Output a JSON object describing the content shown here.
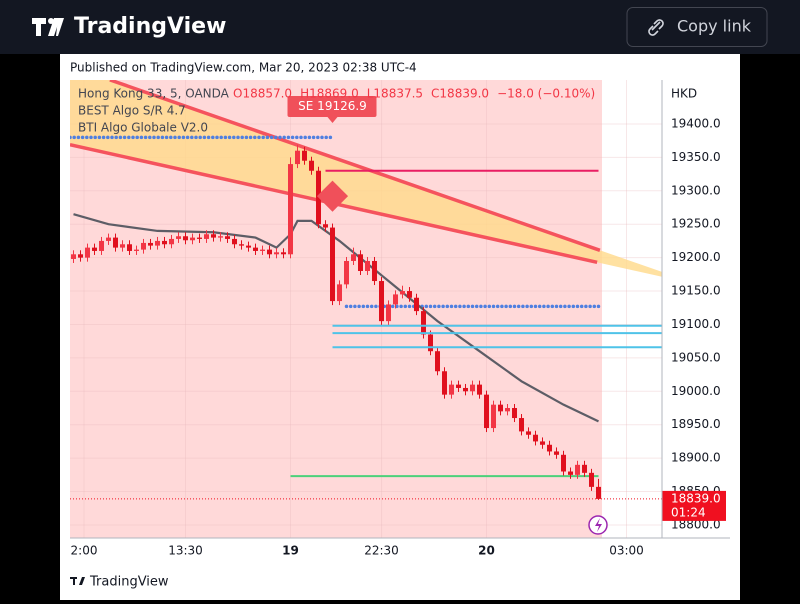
{
  "header": {
    "brand": "TradingView",
    "button": "Copy link"
  },
  "published": "Published on TradingView.com, Mar 20, 2023 02:38 UTC-4",
  "footer": "TradingView",
  "chart_data": {
    "type": "candlestick",
    "symbol": "Hong Kong 33, 5, OANDA",
    "legend_values": [
      "O18857.0",
      "H18869.0",
      "L18837.5",
      "C18839.0",
      "−18.0 (−0.10%)"
    ],
    "indicators": [
      "BEST Algo S/R 4.7",
      "BTI Algo Globale V2.0"
    ],
    "currency": "HKD",
    "open": [
      19198,
      19205,
      19200,
      19215,
      19210,
      19225,
      19230,
      19215,
      19220,
      19210,
      19212,
      19222,
      19218,
      19225,
      19220,
      19228,
      19232,
      19226,
      19230,
      19228,
      19235,
      19230,
      19232,
      19228,
      19220,
      19218,
      19215,
      19210,
      19212,
      19205,
      19208,
      19205,
      19340,
      19360,
      19345,
      19330,
      19250,
      19245,
      19135,
      19160,
      19195,
      19205,
      19180,
      19195,
      19165,
      19105,
      19130,
      19145,
      19150,
      19140,
      19120,
      19085,
      19060,
      19030,
      18995,
      19010,
      19005,
      19000,
      19010,
      18995,
      18945,
      18980,
      18970,
      18975,
      18960,
      18940,
      18935,
      18925,
      18920,
      18910,
      18905,
      18880,
      18875,
      18890,
      18878,
      18857
    ],
    "high": [
      19211,
      19211,
      19221,
      19221,
      19231,
      19236,
      19236,
      19226,
      19226,
      19218,
      19228,
      19228,
      19231,
      19231,
      19234,
      19238,
      19238,
      19236,
      19236,
      19241,
      19241,
      19238,
      19238,
      19234,
      19226,
      19224,
      19221,
      19218,
      19218,
      19214,
      19214,
      19350,
      19369,
      19366,
      19351,
      19336,
      19256,
      19251,
      19166,
      19201,
      19215,
      19211,
      19201,
      19201,
      19171,
      19136,
      19151,
      19158,
      19156,
      19146,
      19126,
      19091,
      19066,
      19036,
      19016,
      19016,
      19011,
      19016,
      19016,
      19001,
      18986,
      18986,
      18981,
      18981,
      18966,
      18946,
      18941,
      18931,
      18926,
      18916,
      18911,
      18886,
      18896,
      18896,
      18884,
      18869
    ],
    "low": [
      19192,
      19194,
      19194,
      19204,
      19204,
      19219,
      19209,
      19209,
      19204,
      19204,
      19206,
      19212,
      19212,
      19214,
      19214,
      19222,
      19220,
      19220,
      19222,
      19222,
      19224,
      19224,
      19222,
      19214,
      19212,
      19209,
      19204,
      19204,
      19199,
      19199,
      19199,
      19199,
      19334,
      19339,
      19324,
      19244,
      19239,
      19129,
      19129,
      19154,
      19189,
      19174,
      19174,
      19159,
      19099,
      19099,
      19124,
      19139,
      19134,
      19114,
      19079,
      19054,
      19024,
      18989,
      18989,
      18999,
      18994,
      18994,
      18989,
      18939,
      18939,
      18964,
      18964,
      18954,
      18934,
      18929,
      18919,
      18914,
      18904,
      18899,
      18874,
      18869,
      18869,
      18872,
      18851,
      18837.5
    ],
    "close": [
      19205,
      19200,
      19215,
      19210,
      19225,
      19230,
      19215,
      19220,
      19210,
      19212,
      19222,
      19218,
      19225,
      19220,
      19228,
      19232,
      19226,
      19230,
      19228,
      19235,
      19230,
      19232,
      19228,
      19220,
      19218,
      19215,
      19210,
      19212,
      19205,
      19208,
      19205,
      19340,
      19360,
      19345,
      19330,
      19250,
      19245,
      19135,
      19160,
      19195,
      19205,
      19180,
      19195,
      19165,
      19105,
      19130,
      19145,
      19150,
      19140,
      19120,
      19085,
      19060,
      19030,
      18995,
      19010,
      19005,
      19000,
      19010,
      18995,
      18945,
      18980,
      18970,
      18975,
      18960,
      18940,
      18935,
      18925,
      18920,
      18910,
      18905,
      18880,
      18875,
      18890,
      18878,
      18857,
      18839
    ],
    "up_color": "#f23645",
    "down_color": "#e0101e",
    "xlim": [
      -0.5,
      84.07
    ],
    "xticks": [
      {
        "value": 1.5,
        "label": "2:00"
      },
      {
        "value": 16,
        "label": "13:30"
      },
      {
        "value": 31,
        "label": "19"
      },
      {
        "value": 44,
        "label": "22:30"
      },
      {
        "value": 59,
        "label": "20"
      },
      {
        "value": 79,
        "label": "03:00"
      }
    ],
    "ylim": [
      18780.5,
      19465.8
    ],
    "yticks": [
      {
        "value": 18800,
        "label": "18800.0"
      },
      {
        "value": 18850,
        "label": "18850.0"
      },
      {
        "value": 18900,
        "label": "18900.0"
      },
      {
        "value": 18950,
        "label": "18950.0"
      },
      {
        "value": 19000,
        "label": "19000.0"
      },
      {
        "value": 19050,
        "label": "19050.0"
      },
      {
        "value": 19100,
        "label": "19100.0"
      },
      {
        "value": 19150,
        "label": "19150.0"
      },
      {
        "value": 19200,
        "label": "19200.0"
      },
      {
        "value": 19250,
        "label": "19250.0"
      },
      {
        "value": 19300,
        "label": "19300.0"
      },
      {
        "value": 19350,
        "label": "19350.0"
      },
      {
        "value": 19400,
        "label": "19400.0"
      }
    ],
    "grid": true,
    "ma": {
      "x": [
        0,
        5,
        12,
        20,
        26,
        29,
        31,
        32,
        34,
        38,
        45,
        52,
        58,
        64,
        70,
        75
      ],
      "values": [
        19265,
        19250,
        19240,
        19238,
        19230,
        19215,
        19235,
        19255,
        19255,
        19225,
        19165,
        19105,
        19060,
        19015,
        18980,
        18955
      ],
      "color": "#5d5d66"
    },
    "trendlines": [
      {
        "x": [
          5.2,
          75.2
        ],
        "y": [
          19466,
          19211
        ],
        "color": "#f5535d"
      },
      {
        "x": [
          -0.5,
          74.8
        ],
        "y": [
          19369,
          19193
        ],
        "color": "#f5535d"
      }
    ],
    "fill_color": "#ffd98a",
    "levels": [
      {
        "y": 19330,
        "x": [
          36,
          75
        ],
        "color": "#e91e63",
        "style": "solid"
      },
      {
        "y": 19380,
        "x": [
          -0.5,
          37
        ],
        "color": "#4f7fe0",
        "style": "dots"
      },
      {
        "y": 19127,
        "x": [
          39,
          75
        ],
        "color": "#4f7fe0",
        "style": "dots"
      },
      {
        "y": 19098,
        "x": [
          37,
          84.07
        ],
        "color": "#4fc3e8",
        "style": "solid"
      },
      {
        "y": 19087,
        "x": [
          37,
          84.07
        ],
        "color": "#4fc3e8",
        "style": "solid"
      },
      {
        "y": 19066,
        "x": [
          37,
          84.07
        ],
        "color": "#4fc3e8",
        "style": "solid"
      },
      {
        "y": 18873,
        "x": [
          31,
          75
        ],
        "color": "#4cd07a",
        "style": "solid"
      }
    ],
    "signal": {
      "label": "SE 19126.9",
      "x": 37,
      "y": 19292,
      "color": "#f0505a"
    },
    "session_end": 75.5,
    "session_color": "#ffd9d9",
    "last_price": {
      "value": 18839,
      "label": "18839.0",
      "countdown": "01:24",
      "color": "#f01020"
    }
  }
}
